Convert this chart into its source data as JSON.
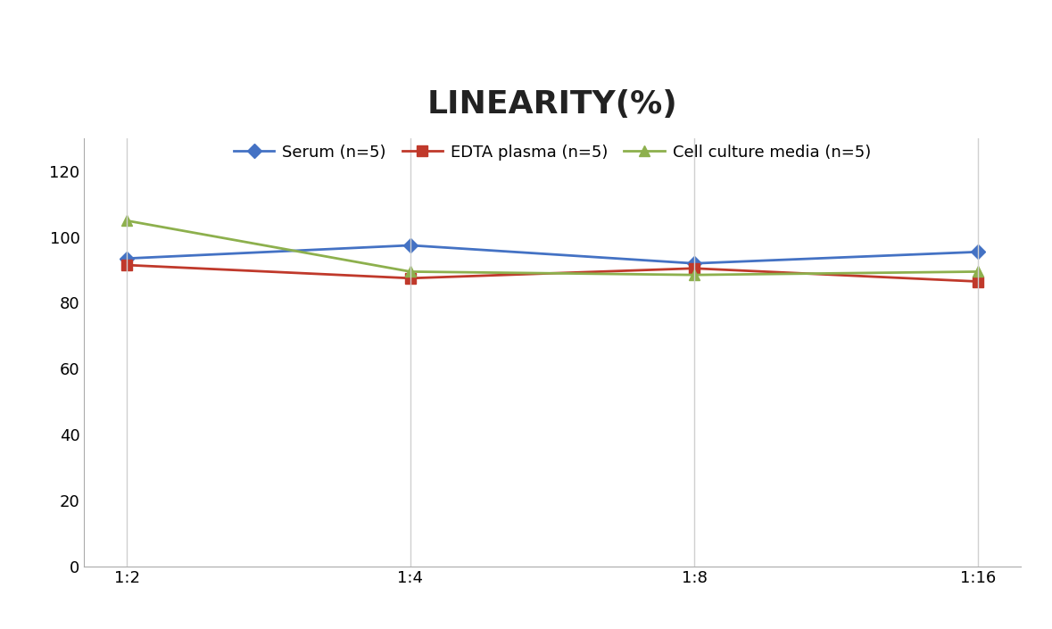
{
  "title": "LINEARITY(%)",
  "title_fontsize": 26,
  "title_fontweight": "bold",
  "x_labels": [
    "1:2",
    "1:4",
    "1:8",
    "1:16"
  ],
  "x_positions": [
    0,
    1,
    2,
    3
  ],
  "series": [
    {
      "label": "Serum (n=5)",
      "color": "#4472C4",
      "marker": "D",
      "markersize": 8,
      "linewidth": 2,
      "values": [
        93.5,
        97.5,
        92.0,
        95.5
      ]
    },
    {
      "label": "EDTA plasma (n=5)",
      "color": "#C0392B",
      "marker": "s",
      "markersize": 8,
      "linewidth": 2,
      "values": [
        91.5,
        87.5,
        90.5,
        86.5
      ]
    },
    {
      "label": "Cell culture media (n=5)",
      "color": "#8DB04D",
      "marker": "^",
      "markersize": 8,
      "linewidth": 2,
      "values": [
        105.0,
        89.5,
        88.5,
        89.5
      ]
    }
  ],
  "ylim": [
    0,
    130
  ],
  "yticks": [
    0,
    20,
    40,
    60,
    80,
    100,
    120
  ],
  "grid_color": "#D0D0D0",
  "background_color": "#FFFFFF",
  "legend_loc": "upper center",
  "legend_ncol": 3,
  "legend_fontsize": 13,
  "tick_fontsize": 13,
  "spine_color": "#AAAAAA"
}
